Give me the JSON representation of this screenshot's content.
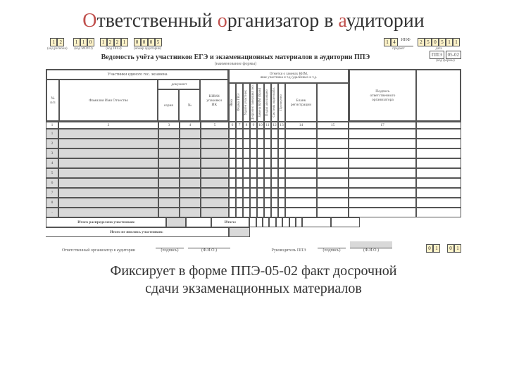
{
  "title_parts": {
    "p1": "О",
    "p2": "тветственный ",
    "p3": "о",
    "p4": "рганизатор в ",
    "p5": "а",
    "p6": "удитории"
  },
  "caption_line1": "Фиксирует в форме ППЭ-05-02 факт досрочной",
  "caption_line2": "сдачи экзаменационных материалов",
  "form_title": "Ведомость учёта участников ЕГЭ и экзаменационных материалов в аудитории ППЭ",
  "form_sub": "(наименование формы)",
  "code_region": [
    "1",
    "2"
  ],
  "code_date": [
    "1",
    "1",
    "0"
  ],
  "code_ppe": [
    "1",
    "2",
    "2",
    "1"
  ],
  "code_aud": [
    "0",
    "0",
    "0",
    "5"
  ],
  "code_subj": [
    "1",
    "4"
  ],
  "subj_short": "ИНФ",
  "code_right2": [
    "2",
    "5",
    "0",
    "5",
    "1",
    "1"
  ],
  "form_code": "05-02",
  "form_series": "ППЭ",
  "labels": {
    "region": "(код региона)",
    "date": "(код МОУО)",
    "ppe": "(код ППЭ)",
    "aud": "(номер аудитории)",
    "subj": "предмет",
    "date2": "дата"
  },
  "head": {
    "block_left": "Участники единого гос. экзамена",
    "num": "№\nп/п",
    "fio": "Фамилия Имя Отчество",
    "doc": "документ",
    "ser": "серия",
    "num_d": "№",
    "kim": "КИМ4\nупаковки\nИК",
    "block_mid_top": "Отметки о            заменах КИМ,\nявке участника и т.д./удалённых и т.д.",
    "mid_cols": [
      "Явка",
      "Форма ГВЭ",
      "Удалён участник",
      "Досрочно завершил экз.",
      "Замена КИМ (брак)",
      "Подал апелляцию",
      "Система видеонабл.",
      "Проверено"
    ],
    "blank": "Бланк\nрегистрации",
    "sign": "Подпись\nответственного\nорганизатора"
  },
  "colnums": [
    "1",
    "2",
    "3",
    "4",
    "5",
    "6",
    "7",
    "8",
    "9",
    "10",
    "11",
    "12",
    "13",
    "14",
    "15",
    "17"
  ],
  "rows_shaded": [
    "1",
    "2",
    "3",
    "4",
    "5",
    "6",
    "7",
    "8",
    "-"
  ],
  "totals1": "Итого распределено участников:",
  "totals2": "Итого:",
  "totals3": "Итого не явились участников:",
  "sig": {
    "org": "Ответственный организатор в аудитории",
    "ruk": "Руководитель ППЭ",
    "podp": "(подпись)",
    "fio": "(Ф.И.О.)"
  },
  "small_codes": {
    "a": [
      "0",
      "1"
    ],
    "b": [
      "0",
      "1"
    ]
  },
  "colors": {
    "highlight": "#c0504d",
    "shade": "#d9d9d9",
    "yellow": "#fdf2c8"
  }
}
